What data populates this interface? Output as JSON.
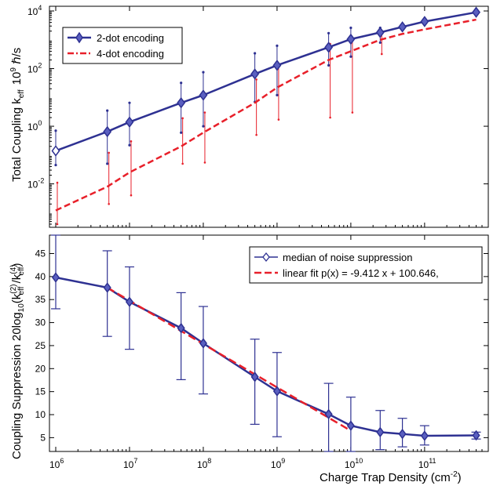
{
  "chart_data": [
    {
      "type": "line",
      "xscale": "log",
      "yscale": "log",
      "xlim": [
        1000000,
        600000000000
      ],
      "ylim": [
        0.0004,
        10000
      ],
      "ylabel": "Total Coupling  k",
      "ylabel_sub": "eff",
      "ylabel_unit": "10",
      "ylabel_unit_sup": "9",
      "ylabel_unit_rest": " ℏ/s",
      "yticks": [
        {
          "value": 0.01,
          "base": "10",
          "exp": "-2"
        },
        {
          "value": 1,
          "base": "10",
          "exp": "0"
        },
        {
          "value": 100,
          "base": "10",
          "exp": "2"
        },
        {
          "value": 10000,
          "base": "10",
          "exp": "4"
        }
      ],
      "legend_position": "top-left",
      "series": [
        {
          "name": "2-dot encoding",
          "color": "#2e3192",
          "style": "solid-diamond",
          "x": [
            1000000,
            5000000,
            10000000,
            50000000,
            100000000,
            500000000,
            1000000000,
            5000000000,
            10000000000,
            25000000000,
            50000000000,
            100000000000,
            500000000000
          ],
          "y": [
            0.14,
            0.65,
            1.4,
            6.5,
            12,
            65,
            130,
            550,
            1050,
            1800,
            2800,
            4300,
            9000
          ],
          "err_low": [
            0.045,
            0.05,
            0.22,
            0.6,
            1.0,
            7,
            12,
            130,
            260,
            800,
            null,
            null,
            null
          ],
          "err_high": [
            0.7,
            3.5,
            6.5,
            32,
            75,
            340,
            620,
            1700,
            2600,
            2600,
            null,
            null,
            null
          ]
        },
        {
          "name": "4-dot encoding",
          "color": "#e8202a",
          "style": "dashed",
          "x": [
            1000000,
            5000000,
            10000000,
            50000000,
            100000000,
            500000000,
            1000000000,
            5000000000,
            10000000000,
            25000000000,
            50000000000,
            100000000000,
            500000000000
          ],
          "y": [
            0.0012,
            0.008,
            0.025,
            0.2,
            0.6,
            6.5,
            22,
            200,
            400,
            1000,
            1600,
            2300,
            5000
          ],
          "err_low": [
            0.0004,
            0.002,
            0.004,
            0.05,
            0.055,
            0.5,
            1.7,
            2.0,
            3.0,
            320,
            null,
            null,
            null
          ],
          "err_high": [
            0.011,
            0.12,
            0.3,
            1.9,
            3.0,
            42,
            120,
            720,
            1100,
            1700,
            null,
            null,
            null
          ]
        }
      ]
    },
    {
      "type": "line",
      "xscale": "log",
      "xlim": [
        1000000,
        600000000000
      ],
      "ylim": [
        2,
        49
      ],
      "xlabel": "Charge Trap Density (cm",
      "xlabel_sup": "-2",
      "xlabel_close": ")",
      "ylabel_main": "Coupling Suppression 20log",
      "ylabel_sub1": "10",
      "ylabel_a": "(k",
      "ylabel_sup1": "(2)",
      "ylabel_sub2": "eff",
      "ylabel_b": " /k",
      "ylabel_sup2": "(4)",
      "ylabel_sub3": "eff",
      "ylabel_c": ")",
      "yticks": [
        5,
        10,
        15,
        20,
        25,
        30,
        35,
        40,
        45
      ],
      "xticks": [
        {
          "value": 1000000,
          "base": "10",
          "exp": "6"
        },
        {
          "value": 10000000,
          "base": "10",
          "exp": "7"
        },
        {
          "value": 100000000,
          "base": "10",
          "exp": "8"
        },
        {
          "value": 1000000000,
          "base": "10",
          "exp": "9"
        },
        {
          "value": 10000000000,
          "base": "10",
          "exp": "10"
        },
        {
          "value": 100000000000,
          "base": "10",
          "exp": "11"
        }
      ],
      "legend_position": "top-right",
      "series": [
        {
          "name": "median of noise suppression",
          "color": "#2e3192",
          "style": "solid-diamond",
          "x": [
            1000000,
            5000000,
            10000000,
            50000000,
            100000000,
            500000000,
            1000000000,
            5000000000,
            10000000000,
            25000000000,
            50000000000,
            100000000000,
            500000000000
          ],
          "y": [
            39.8,
            37.6,
            34.5,
            28.8,
            25.5,
            18.2,
            15.1,
            10.1,
            7.6,
            6.2,
            5.8,
            5.4,
            5.5
          ],
          "err_low": [
            33.0,
            27.0,
            24.2,
            17.6,
            14.5,
            7.9,
            5.2,
            2.0,
            2.0,
            2.4,
            3.0,
            3.4,
            4.7
          ],
          "err_high": [
            49.0,
            45.6,
            42.1,
            36.5,
            33.5,
            26.4,
            23.5,
            16.8,
            13.8,
            10.9,
            9.2,
            7.6,
            6.2
          ]
        },
        {
          "name": "linear fit p(x) = -9.412 x + 100.646,",
          "color": "#e8202a",
          "style": "dashed",
          "x": [
            5000000,
            10000000000
          ],
          "y": [
            37.6,
            6.5
          ]
        }
      ]
    }
  ]
}
